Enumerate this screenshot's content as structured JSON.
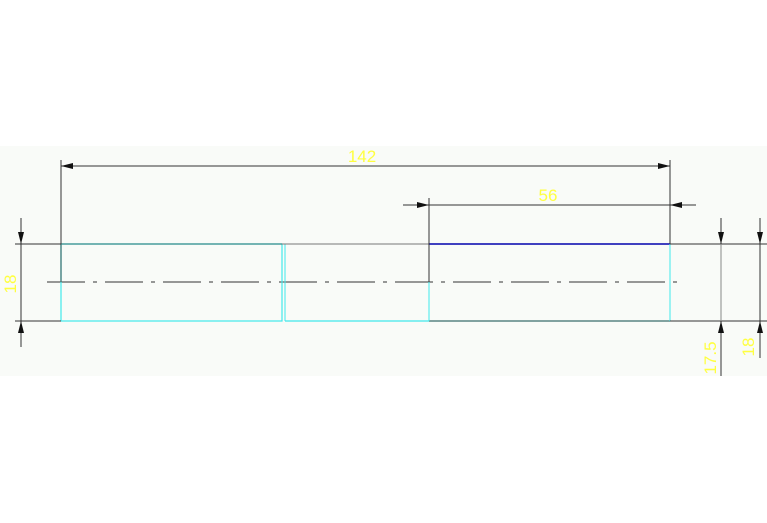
{
  "colors": {
    "background": "#f9fbf8",
    "dimension_line": "#2a2a2a",
    "dimension_text": "#ffff40",
    "outline_cyan": "#40e8ec",
    "outline_blue": "#4040c0",
    "centerline": "#333333"
  },
  "dimensions": {
    "overall_length": "142",
    "right_section_length": "56",
    "left_diameter": "18",
    "right_diameter_inner": "17.5",
    "right_diameter_outer": "18"
  }
}
